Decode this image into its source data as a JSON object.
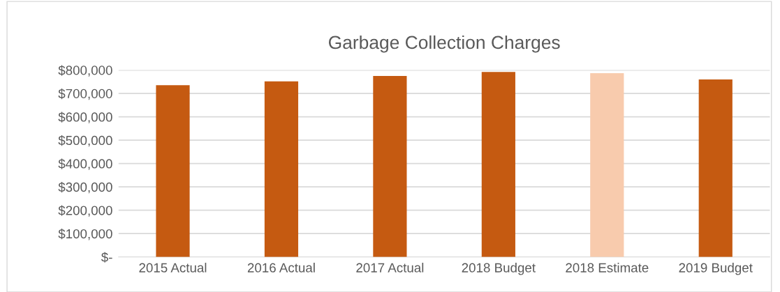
{
  "chart_data": {
    "type": "bar",
    "title": "Garbage Collection Charges",
    "categories": [
      "2015 Actual",
      "2016 Actual",
      "2017 Actual",
      "2018 Budget",
      "2018 Estimate",
      "2019 Budget"
    ],
    "values": [
      735000,
      752000,
      775000,
      792000,
      787000,
      760000
    ],
    "colors": [
      "#c55a11",
      "#c55a11",
      "#c55a11",
      "#c55a11",
      "#f8cbad",
      "#c55a11"
    ],
    "ylim": [
      0,
      800000
    ],
    "yticks": [
      {
        "value": 0,
        "label": "$-"
      },
      {
        "value": 100000,
        "label": "$100,000"
      },
      {
        "value": 200000,
        "label": "$200,000"
      },
      {
        "value": 300000,
        "label": "$300,000"
      },
      {
        "value": 400000,
        "label": "$400,000"
      },
      {
        "value": 500000,
        "label": "$500,000"
      },
      {
        "value": 600000,
        "label": "$600,000"
      },
      {
        "value": 700000,
        "label": "$700,000"
      },
      {
        "value": 800000,
        "label": "$800,000"
      }
    ],
    "grid": "y"
  }
}
